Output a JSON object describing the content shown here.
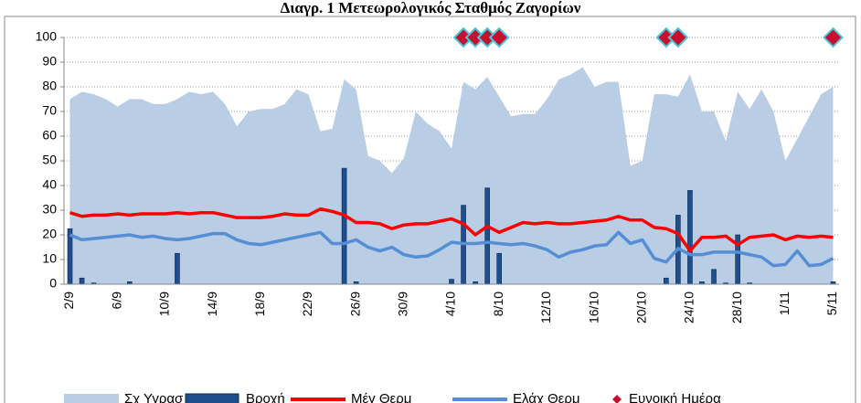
{
  "chart_data": {
    "type": "combo",
    "title": "Διαγρ. 1 Μετεωρολογικός Σταθμός Ζαγορίων",
    "categories": [
      "2/9",
      null,
      null,
      null,
      "6/9",
      null,
      null,
      null,
      "10/9",
      null,
      null,
      null,
      "14/9",
      null,
      null,
      null,
      "18/9",
      null,
      null,
      null,
      "22/9",
      null,
      null,
      null,
      "26/9",
      null,
      null,
      null,
      "30/9",
      null,
      null,
      null,
      "4/10",
      null,
      null,
      null,
      "8/10",
      null,
      null,
      null,
      "12/10",
      null,
      null,
      null,
      "16/10",
      null,
      null,
      null,
      "20/10",
      null,
      null,
      null,
      "24/10",
      null,
      null,
      null,
      "28/10",
      null,
      null,
      null,
      "1/11",
      null,
      null,
      null,
      "5/11"
    ],
    "ylim": [
      0,
      100
    ],
    "yticks": [
      0,
      10,
      20,
      30,
      40,
      50,
      60,
      70,
      80,
      90,
      100
    ],
    "grid": true,
    "legend": "bottom",
    "series": [
      {
        "name": "Σχ Υγρασ",
        "type": "area",
        "color": "#b9cde5",
        "values": [
          75,
          78,
          77,
          75,
          72,
          75,
          75,
          73,
          73,
          75,
          78,
          77,
          78,
          73,
          64,
          70,
          71,
          71,
          73,
          79,
          77,
          62,
          63,
          83,
          79,
          52,
          50,
          45,
          51,
          70,
          65,
          62,
          55,
          82,
          79,
          84,
          76,
          68,
          69,
          69,
          75,
          83,
          85,
          88,
          80,
          82,
          82,
          48,
          50,
          77,
          77,
          76,
          85,
          70,
          70,
          58,
          78,
          71,
          79,
          70,
          50,
          59,
          68,
          77,
          80
        ]
      },
      {
        "name": "Βροχή",
        "type": "bar",
        "color": "#1f4e8c",
        "values": [
          22.5,
          2.5,
          0.5,
          0,
          0,
          1,
          0,
          0,
          0,
          12.5,
          0,
          0,
          0,
          0,
          0,
          0,
          0,
          0,
          0,
          0,
          0,
          0,
          0,
          47,
          1,
          0,
          0,
          0,
          0,
          0,
          0,
          0,
          2,
          32,
          1,
          39,
          12.5,
          0,
          0,
          0,
          0,
          0,
          0,
          0,
          0,
          0,
          0,
          0,
          0,
          0,
          2.5,
          28,
          38,
          1,
          6,
          0.5,
          20,
          0.5,
          0,
          0,
          0,
          0,
          0,
          0,
          1
        ]
      },
      {
        "name": "Μέγ Θερμ",
        "type": "line",
        "color": "#ff0000",
        "values": [
          29,
          27.5,
          28,
          28,
          28.5,
          28,
          28.5,
          28.5,
          28.5,
          29,
          28.5,
          29,
          29,
          28,
          27,
          27,
          27,
          27.5,
          28.5,
          28,
          28,
          30.5,
          29.5,
          28,
          25,
          25,
          24.5,
          22.5,
          24,
          24.5,
          24.5,
          25.5,
          26.5,
          24.5,
          20,
          23.5,
          21,
          23,
          25,
          24.5,
          25,
          24.5,
          24.5,
          25,
          25.5,
          26,
          27.5,
          26,
          26,
          23,
          22.5,
          20.5,
          13.5,
          19,
          19,
          19.5,
          16,
          19,
          19.5,
          20,
          18,
          19.5,
          19,
          19.5,
          19
        ]
      },
      {
        "name": "Ελάχ Θερμ",
        "type": "line",
        "color": "#558ed5",
        "values": [
          20,
          18,
          18.5,
          19,
          19.5,
          20,
          19,
          19.5,
          18.5,
          18,
          18.5,
          19.5,
          20.5,
          20.5,
          18,
          16.5,
          16,
          17,
          18,
          19,
          20,
          21,
          16.5,
          16.5,
          18,
          15,
          13.5,
          15,
          12,
          11,
          11.5,
          14,
          17,
          16.5,
          16.5,
          17,
          16.5,
          16,
          16.5,
          15.5,
          14,
          11,
          13,
          14,
          15.5,
          16,
          21,
          16.5,
          18,
          10.5,
          9,
          14.5,
          12,
          12,
          13,
          13,
          13,
          12,
          11,
          7.5,
          8,
          13.5,
          7.5,
          8,
          10.5
        ]
      },
      {
        "name": "Ευνοική Ημέρα",
        "type": "scatter",
        "color": "#c8102e",
        "values": [
          null,
          null,
          null,
          null,
          null,
          null,
          null,
          null,
          null,
          null,
          null,
          null,
          null,
          null,
          null,
          null,
          null,
          null,
          null,
          null,
          null,
          null,
          null,
          null,
          null,
          null,
          null,
          null,
          null,
          null,
          null,
          null,
          null,
          100,
          100,
          100,
          100,
          null,
          null,
          null,
          null,
          null,
          null,
          null,
          null,
          null,
          null,
          null,
          null,
          null,
          100,
          100,
          null,
          null,
          null,
          null,
          null,
          null,
          null,
          null,
          null,
          null,
          null,
          null,
          100
        ]
      }
    ]
  }
}
